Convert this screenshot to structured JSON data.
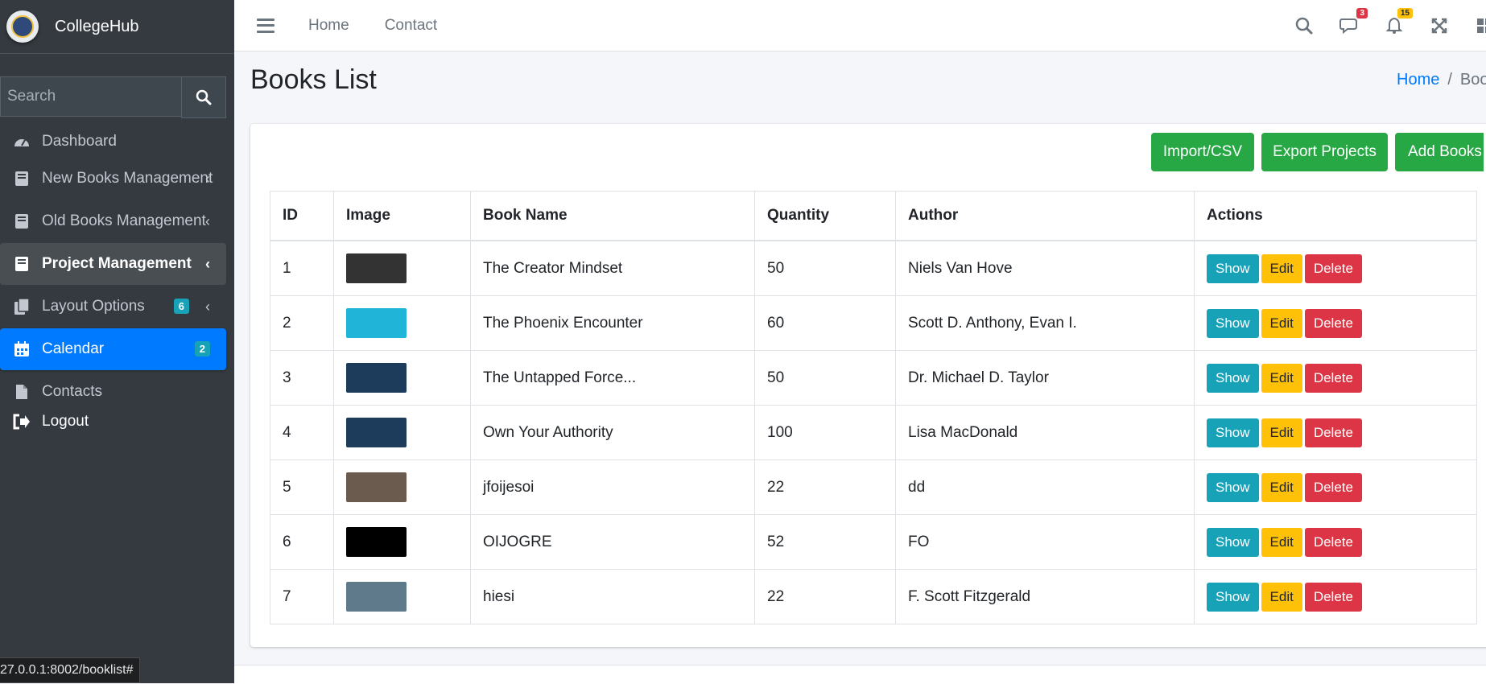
{
  "brand": {
    "name": "CollegeHub"
  },
  "sidebar": {
    "search_placeholder": "Search",
    "items": [
      {
        "label": "Dashboard",
        "icon": "tachometer-icon"
      },
      {
        "label": "New Books Management",
        "icon": "book-icon"
      },
      {
        "label": "Old Books Management",
        "icon": "book-icon"
      },
      {
        "label": "Project Management",
        "icon": "book-icon"
      },
      {
        "label": "Layout Options",
        "icon": "copy-icon",
        "badge": "6"
      },
      {
        "label": "Calendar",
        "icon": "calendar-icon",
        "badge": "2"
      },
      {
        "label": "Contacts",
        "icon": "file-icon"
      },
      {
        "label": "Logout",
        "icon": "sign-out-icon"
      }
    ]
  },
  "topnav": {
    "home": "Home",
    "contact": "Contact",
    "messages_count": "3",
    "notifications_count": "15"
  },
  "page": {
    "title": "Books List",
    "breadcrumb_home": "Home",
    "breadcrumb_current": "Boo"
  },
  "toolbar": {
    "import_label": "Import/CSV",
    "export_label": "Export Projects",
    "add_label": "Add Books"
  },
  "table": {
    "headers": [
      "ID",
      "Image",
      "Book Name",
      "Quantity",
      "Author",
      "Actions"
    ],
    "rows": [
      {
        "id": "1",
        "name": "The Creator Mindset",
        "quantity": "50",
        "author": "Niels Van Hove",
        "thumb_color": "#333333"
      },
      {
        "id": "2",
        "name": "The Phoenix Encounter",
        "quantity": "60",
        "author": "Scott D. Anthony, Evan I.",
        "thumb_color": "#1fb4d8"
      },
      {
        "id": "3",
        "name": "The Untapped Force...",
        "quantity": "50",
        "author": "Dr. Michael D. Taylor",
        "thumb_color": "#1d3b5a"
      },
      {
        "id": "4",
        "name": "Own Your Authority",
        "quantity": "100",
        "author": "Lisa MacDonald",
        "thumb_color": "#1d3b5a"
      },
      {
        "id": "5",
        "name": "jfoijesoi",
        "quantity": "22",
        "author": "dd",
        "thumb_color": "#6b5a4e"
      },
      {
        "id": "6",
        "name": "OIJOGRE",
        "quantity": "52",
        "author": "FO",
        "thumb_color": "#000000"
      },
      {
        "id": "7",
        "name": "hiesi",
        "quantity": "22",
        "author": "F. Scott Fitzgerald",
        "thumb_color": "#5f7a8a"
      }
    ],
    "actions": {
      "show": "Show",
      "edit": "Edit",
      "delete": "Delete"
    }
  },
  "status_url": "27.0.0.1:8002/booklist#",
  "colors": {
    "sidebar_bg": "#343a40",
    "primary": "#007bff",
    "success": "#28a745",
    "info": "#17a2b8",
    "warning": "#ffc107",
    "danger": "#dc3545"
  }
}
